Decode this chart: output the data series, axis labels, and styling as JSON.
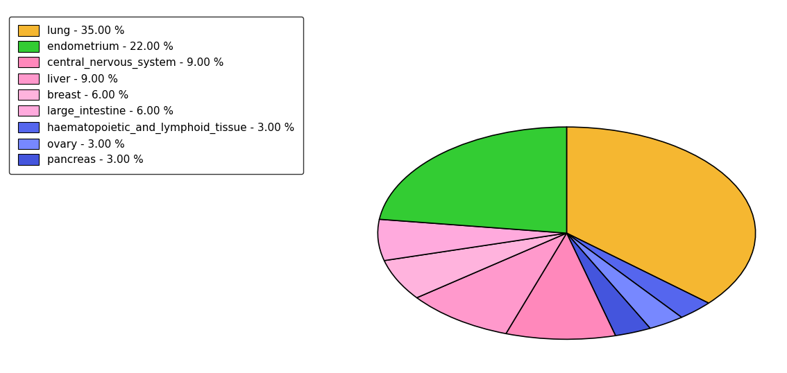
{
  "legend_labels": [
    "lung - 35.00 %",
    "endometrium - 22.00 %",
    "central_nervous_system - 9.00 %",
    "liver - 9.00 %",
    "breast - 6.00 %",
    "large_intestine - 6.00 %",
    "haematopoietic_and_lymphoid_tissue - 3.00 %",
    "ovary - 3.00 %",
    "pancreas - 3.00 %"
  ],
  "legend_colors": [
    "#F5B731",
    "#33CC33",
    "#FF88BB",
    "#FF99CC",
    "#FFB3DD",
    "#FFAADD",
    "#5566EE",
    "#7788FF",
    "#4455DD"
  ],
  "pie_order_values": [
    35,
    3,
    3,
    3,
    9,
    9,
    6,
    6,
    22
  ],
  "pie_order_colors": [
    "#F5B731",
    "#5566EE",
    "#7788FF",
    "#4455DD",
    "#FF88BB",
    "#FF99CC",
    "#FFB3DD",
    "#FFAADD",
    "#33CC33"
  ],
  "startangle": 90,
  "ellipse_ratio": 0.75,
  "figsize": [
    11.34,
    5.38
  ],
  "dpi": 100
}
